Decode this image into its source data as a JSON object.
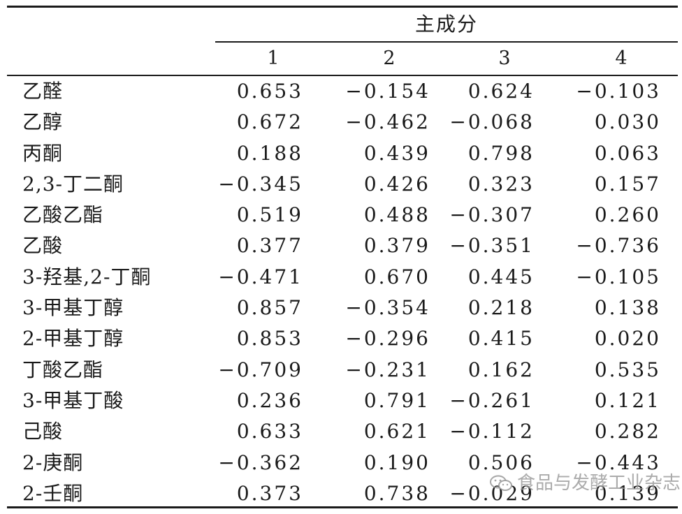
{
  "table": {
    "group_header": "主成分",
    "columns": [
      "1",
      "2",
      "3",
      "4"
    ],
    "rows": [
      {
        "name": "乙醛",
        "values": [
          "0.653",
          "−0.154",
          "0.624",
          "−0.103"
        ]
      },
      {
        "name": "乙醇",
        "values": [
          "0.672",
          "−0.462",
          "−0.068",
          "0.030"
        ]
      },
      {
        "name": "丙酮",
        "values": [
          "0.188",
          "0.439",
          "0.798",
          "0.063"
        ]
      },
      {
        "name": "2,3-丁二酮",
        "values": [
          "−0.345",
          "0.426",
          "0.323",
          "0.157"
        ]
      },
      {
        "name": "乙酸乙酯",
        "values": [
          "0.519",
          "0.488",
          "−0.307",
          "0.260"
        ]
      },
      {
        "name": "乙酸",
        "values": [
          "0.377",
          "0.379",
          "−0.351",
          "−0.736"
        ]
      },
      {
        "name": "3-羟基,2-丁酮",
        "values": [
          "−0.471",
          "0.670",
          "0.445",
          "−0.105"
        ]
      },
      {
        "name": "3-甲基丁醇",
        "values": [
          "0.857",
          "−0.354",
          "0.218",
          "0.138"
        ]
      },
      {
        "name": "2-甲基丁醇",
        "values": [
          "0.853",
          "−0.296",
          "0.415",
          "0.020"
        ]
      },
      {
        "name": "丁酸乙酯",
        "values": [
          "−0.709",
          "−0.231",
          "0.162",
          "0.535"
        ]
      },
      {
        "name": "3-甲基丁酸",
        "values": [
          "0.236",
          "0.791",
          "−0.261",
          "0.121"
        ]
      },
      {
        "name": "己酸",
        "values": [
          "0.633",
          "0.621",
          "−0.112",
          "0.282"
        ]
      },
      {
        "name": "2-庚酮",
        "values": [
          "−0.362",
          "0.190",
          "0.506",
          "−0.443"
        ]
      },
      {
        "name": "2-壬酮",
        "values": [
          "0.373",
          "0.738",
          "−0.029",
          "0.139"
        ]
      }
    ]
  },
  "watermark": {
    "text": "食品与发酵工业杂志",
    "icon": "wechat-icon"
  }
}
